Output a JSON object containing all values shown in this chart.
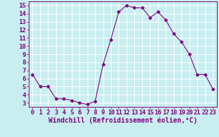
{
  "hours": [
    0,
    1,
    2,
    3,
    4,
    5,
    6,
    7,
    8,
    9,
    10,
    11,
    12,
    13,
    14,
    15,
    16,
    17,
    18,
    19,
    20,
    21,
    22,
    23
  ],
  "values": [
    6.5,
    5.0,
    5.0,
    3.5,
    3.5,
    3.3,
    3.0,
    2.8,
    3.2,
    7.7,
    10.8,
    14.2,
    15.0,
    14.7,
    14.7,
    13.5,
    14.2,
    13.2,
    11.5,
    10.5,
    9.0,
    6.5,
    6.5,
    4.7
  ],
  "line_color": "#800080",
  "marker": "D",
  "marker_size": 2.5,
  "bg_color": "#c8eef0",
  "grid_color": "#ffffff",
  "xlabel": "Windchill (Refroidissement éolien,°C)",
  "xlim": [
    -0.5,
    23.5
  ],
  "ylim": [
    2.5,
    15.5
  ],
  "yticks": [
    3,
    4,
    5,
    6,
    7,
    8,
    9,
    10,
    11,
    12,
    13,
    14,
    15
  ],
  "xticks": [
    0,
    1,
    2,
    3,
    4,
    5,
    6,
    7,
    8,
    9,
    10,
    11,
    12,
    13,
    14,
    15,
    16,
    17,
    18,
    19,
    20,
    21,
    22,
    23
  ],
  "tick_color": "#800080",
  "label_color": "#800080",
  "spine_color": "#800080",
  "font_size": 6.5,
  "xlabel_fontsize": 7
}
